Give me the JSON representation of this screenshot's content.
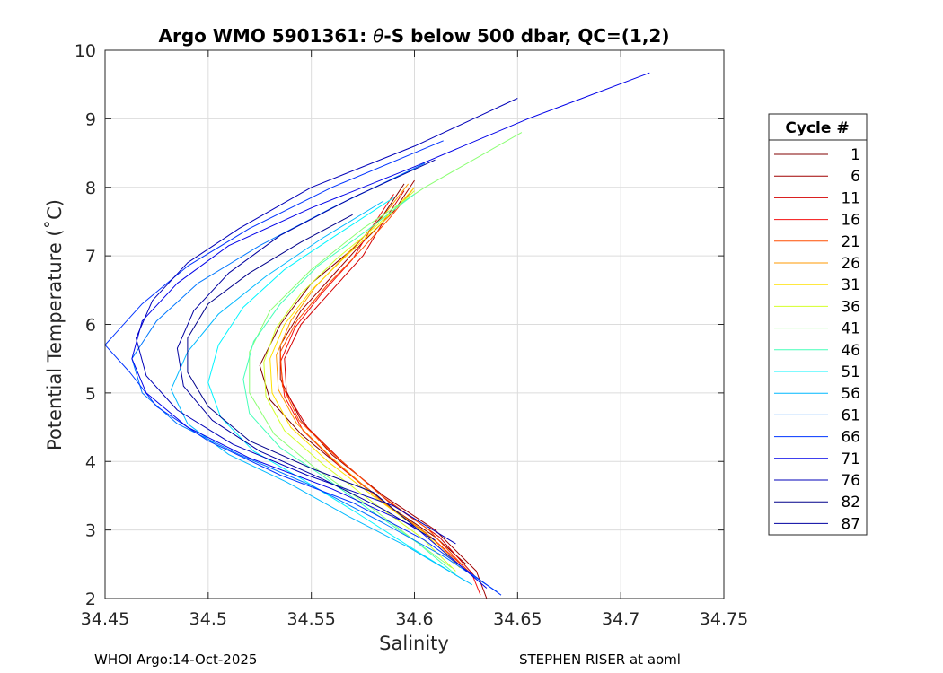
{
  "chart_data": {
    "type": "line",
    "title": "Argo WMO 5901361: θ-S below 500 dbar,  QC=(1,2)",
    "title_prefix": "Argo WMO 5901361: ",
    "title_theta": "θ",
    "title_suffix": "-S below 500 dbar,  QC=(1,2)",
    "xlabel": "Salinity",
    "ylabel": "Potential Temperature (˚C)",
    "xlim": [
      34.45,
      34.75
    ],
    "ylim": [
      2,
      10
    ],
    "xticks": [
      34.45,
      34.5,
      34.55,
      34.6,
      34.65,
      34.7,
      34.75
    ],
    "xtick_labels": [
      "34.45",
      "34.5",
      "34.55",
      "34.6",
      "34.65",
      "34.7",
      "34.75"
    ],
    "yticks": [
      2,
      3,
      4,
      5,
      6,
      7,
      8,
      9,
      10
    ],
    "ytick_labels": [
      "2",
      "3",
      "4",
      "5",
      "6",
      "7",
      "8",
      "9",
      "10"
    ],
    "grid": true,
    "legend": {
      "title": "Cycle #",
      "placement": "right",
      "entries": [
        {
          "label": "1",
          "color": "#800000"
        },
        {
          "label": "6",
          "color": "#a00000"
        },
        {
          "label": "11",
          "color": "#d40000"
        },
        {
          "label": "16",
          "color": "#f51010"
        },
        {
          "label": "21",
          "color": "#ff4f00"
        },
        {
          "label": "26",
          "color": "#ff9a00"
        },
        {
          "label": "31",
          "color": "#ffe100"
        },
        {
          "label": "36",
          "color": "#d4ff2a"
        },
        {
          "label": "41",
          "color": "#8bff73"
        },
        {
          "label": "46",
          "color": "#45ffb9"
        },
        {
          "label": "51",
          "color": "#00f5ff"
        },
        {
          "label": "56",
          "color": "#00b8ff"
        },
        {
          "label": "61",
          "color": "#0078ff"
        },
        {
          "label": "66",
          "color": "#0034ff"
        },
        {
          "label": "71",
          "color": "#0000e8"
        },
        {
          "label": "76",
          "color": "#0000b8"
        },
        {
          "label": "82",
          "color": "#00008a"
        },
        {
          "label": "87",
          "color": "#0000a0"
        }
      ]
    },
    "series": [
      {
        "name": "1",
        "color": "#800000",
        "points": [
          [
            34.595,
            8.05
          ],
          [
            34.585,
            7.6
          ],
          [
            34.57,
            7.1
          ],
          [
            34.55,
            6.6
          ],
          [
            34.535,
            6.0
          ],
          [
            34.525,
            5.4
          ],
          [
            34.53,
            4.9
          ],
          [
            34.545,
            4.4
          ],
          [
            34.565,
            3.9
          ],
          [
            34.59,
            3.3
          ],
          [
            34.61,
            2.9
          ],
          [
            34.625,
            2.5
          ]
        ]
      },
      {
        "name": "6",
        "color": "#a00000",
        "points": [
          [
            34.6,
            8.1
          ],
          [
            34.59,
            7.65
          ],
          [
            34.575,
            7.2
          ],
          [
            34.56,
            6.7
          ],
          [
            34.545,
            6.2
          ],
          [
            34.535,
            5.7
          ],
          [
            34.535,
            5.2
          ],
          [
            34.545,
            4.6
          ],
          [
            34.56,
            4.1
          ],
          [
            34.585,
            3.5
          ],
          [
            34.61,
            3.0
          ],
          [
            34.63,
            2.4
          ],
          [
            34.635,
            2.0
          ]
        ]
      },
      {
        "name": "11",
        "color": "#d40000",
        "points": [
          [
            34.595,
            7.95
          ],
          [
            34.585,
            7.5
          ],
          [
            34.575,
            7.0
          ],
          [
            34.56,
            6.5
          ],
          [
            34.545,
            6.0
          ],
          [
            34.537,
            5.5
          ],
          [
            34.538,
            5.0
          ],
          [
            34.548,
            4.5
          ],
          [
            34.565,
            4.0
          ],
          [
            34.588,
            3.4
          ],
          [
            34.612,
            2.9
          ],
          [
            34.63,
            2.3
          ]
        ]
      },
      {
        "name": "16",
        "color": "#f51010",
        "points": [
          [
            34.59,
            7.9
          ],
          [
            34.58,
            7.45
          ],
          [
            34.57,
            6.95
          ],
          [
            34.555,
            6.45
          ],
          [
            34.542,
            5.95
          ],
          [
            34.535,
            5.45
          ],
          [
            34.537,
            4.95
          ],
          [
            34.546,
            4.45
          ],
          [
            34.563,
            3.95
          ],
          [
            34.585,
            3.4
          ],
          [
            34.608,
            2.9
          ],
          [
            34.628,
            2.35
          ],
          [
            34.632,
            2.05
          ]
        ]
      },
      {
        "name": "21",
        "color": "#ff4f00",
        "points": [
          [
            34.6,
            8.0
          ],
          [
            34.588,
            7.55
          ],
          [
            34.573,
            7.05
          ],
          [
            34.557,
            6.55
          ],
          [
            34.543,
            6.05
          ],
          [
            34.535,
            5.6
          ],
          [
            34.536,
            5.1
          ],
          [
            34.544,
            4.6
          ],
          [
            34.561,
            4.1
          ],
          [
            34.584,
            3.5
          ],
          [
            34.607,
            3.0
          ],
          [
            34.626,
            2.4
          ]
        ]
      },
      {
        "name": "26",
        "color": "#ff9a00",
        "points": [
          [
            34.597,
            8.05
          ],
          [
            34.584,
            7.55
          ],
          [
            34.568,
            7.05
          ],
          [
            34.552,
            6.55
          ],
          [
            34.54,
            6.05
          ],
          [
            34.533,
            5.55
          ],
          [
            34.534,
            5.05
          ],
          [
            34.543,
            4.55
          ],
          [
            34.56,
            4.05
          ],
          [
            34.583,
            3.45
          ],
          [
            34.606,
            2.95
          ],
          [
            34.625,
            2.4
          ]
        ]
      },
      {
        "name": "31",
        "color": "#ffe100",
        "points": [
          [
            34.6,
            8.0
          ],
          [
            34.585,
            7.5
          ],
          [
            34.567,
            7.0
          ],
          [
            34.55,
            6.5
          ],
          [
            34.537,
            6.0
          ],
          [
            34.53,
            5.5
          ],
          [
            34.531,
            5.0
          ],
          [
            34.54,
            4.5
          ],
          [
            34.558,
            4.0
          ],
          [
            34.582,
            3.45
          ],
          [
            34.605,
            2.95
          ],
          [
            34.622,
            2.45
          ]
        ]
      },
      {
        "name": "36",
        "color": "#d4ff2a",
        "points": [
          [
            34.6,
            7.95
          ],
          [
            34.582,
            7.45
          ],
          [
            34.562,
            6.95
          ],
          [
            34.545,
            6.45
          ],
          [
            34.533,
            5.95
          ],
          [
            34.527,
            5.45
          ],
          [
            34.528,
            4.95
          ],
          [
            34.537,
            4.45
          ],
          [
            34.556,
            3.95
          ],
          [
            34.58,
            3.4
          ],
          [
            34.603,
            2.9
          ],
          [
            34.62,
            2.4
          ]
        ]
      },
      {
        "name": "41",
        "color": "#8bff73",
        "points": [
          [
            34.652,
            8.8
          ],
          [
            34.605,
            8.0
          ],
          [
            34.575,
            7.4
          ],
          [
            34.55,
            6.8
          ],
          [
            34.53,
            6.2
          ],
          [
            34.52,
            5.6
          ],
          [
            34.52,
            5.0
          ],
          [
            34.532,
            4.4
          ],
          [
            34.552,
            3.9
          ],
          [
            34.578,
            3.35
          ],
          [
            34.6,
            2.85
          ],
          [
            34.618,
            2.45
          ]
        ]
      },
      {
        "name": "46",
        "color": "#45ffb9",
        "points": [
          [
            34.6,
            7.9
          ],
          [
            34.576,
            7.35
          ],
          [
            34.553,
            6.85
          ],
          [
            34.535,
            6.3
          ],
          [
            34.522,
            5.75
          ],
          [
            34.517,
            5.2
          ],
          [
            34.52,
            4.7
          ],
          [
            34.535,
            4.2
          ],
          [
            34.555,
            3.8
          ],
          [
            34.578,
            3.3
          ],
          [
            34.602,
            2.8
          ],
          [
            34.62,
            2.35
          ]
        ]
      },
      {
        "name": "51",
        "color": "#00f5ff",
        "points": [
          [
            34.59,
            7.85
          ],
          [
            34.562,
            7.3
          ],
          [
            34.537,
            6.8
          ],
          [
            34.517,
            6.25
          ],
          [
            34.505,
            5.7
          ],
          [
            34.5,
            5.15
          ],
          [
            34.506,
            4.65
          ],
          [
            34.522,
            4.15
          ],
          [
            34.545,
            3.75
          ],
          [
            34.572,
            3.25
          ],
          [
            34.598,
            2.75
          ],
          [
            34.625,
            2.25
          ]
        ]
      },
      {
        "name": "56",
        "color": "#00b8ff",
        "points": [
          [
            34.585,
            7.8
          ],
          [
            34.555,
            7.25
          ],
          [
            34.528,
            6.7
          ],
          [
            34.505,
            6.15
          ],
          [
            34.49,
            5.6
          ],
          [
            34.482,
            5.05
          ],
          [
            34.49,
            4.55
          ],
          [
            34.51,
            4.1
          ],
          [
            34.538,
            3.7
          ],
          [
            34.568,
            3.2
          ],
          [
            34.597,
            2.75
          ],
          [
            34.628,
            2.2
          ]
        ]
      },
      {
        "name": "61",
        "color": "#0078ff",
        "points": [
          [
            34.605,
            8.35
          ],
          [
            34.56,
            7.7
          ],
          [
            34.525,
            7.15
          ],
          [
            34.495,
            6.6
          ],
          [
            34.475,
            6.05
          ],
          [
            34.463,
            5.5
          ],
          [
            34.468,
            5.0
          ],
          [
            34.485,
            4.55
          ],
          [
            34.515,
            4.1
          ],
          [
            34.55,
            3.65
          ],
          [
            34.585,
            3.1
          ],
          [
            34.615,
            2.6
          ],
          [
            34.64,
            2.1
          ]
        ]
      },
      {
        "name": "66",
        "color": "#0034ff",
        "points": [
          [
            34.614,
            8.68
          ],
          [
            34.56,
            8.0
          ],
          [
            34.52,
            7.4
          ],
          [
            34.49,
            6.85
          ],
          [
            34.468,
            6.3
          ],
          [
            34.45,
            5.7
          ],
          [
            34.462,
            5.3
          ],
          [
            34.475,
            4.8
          ],
          [
            34.5,
            4.3
          ],
          [
            34.535,
            3.8
          ],
          [
            34.57,
            3.4
          ],
          [
            34.605,
            2.85
          ],
          [
            34.642,
            2.05
          ]
        ]
      },
      {
        "name": "71",
        "color": "#0000e8",
        "points": [
          [
            34.714,
            9.67
          ],
          [
            34.655,
            9.0
          ],
          [
            34.6,
            8.3
          ],
          [
            34.55,
            7.7
          ],
          [
            34.51,
            7.15
          ],
          [
            34.485,
            6.6
          ],
          [
            34.468,
            6.05
          ],
          [
            34.463,
            5.5
          ],
          [
            34.47,
            5.0
          ],
          [
            34.49,
            4.5
          ],
          [
            34.52,
            4.05
          ],
          [
            34.56,
            3.6
          ],
          [
            34.6,
            3.05
          ],
          [
            34.635,
            2.15
          ]
        ]
      },
      {
        "name": "76",
        "color": "#0000b8",
        "points": [
          [
            34.65,
            9.3
          ],
          [
            34.6,
            8.6
          ],
          [
            34.55,
            8.0
          ],
          [
            34.515,
            7.4
          ],
          [
            34.49,
            6.9
          ],
          [
            34.473,
            6.35
          ],
          [
            34.465,
            5.8
          ],
          [
            34.47,
            5.25
          ],
          [
            34.485,
            4.75
          ],
          [
            34.512,
            4.25
          ],
          [
            34.548,
            3.8
          ],
          [
            34.59,
            3.35
          ],
          [
            34.62,
            2.8
          ]
        ]
      },
      {
        "name": "82",
        "color": "#00008a",
        "points": [
          [
            34.57,
            7.6
          ],
          [
            34.545,
            7.2
          ],
          [
            34.52,
            6.75
          ],
          [
            34.5,
            6.3
          ],
          [
            34.49,
            5.8
          ],
          [
            34.49,
            5.3
          ],
          [
            34.5,
            4.8
          ],
          [
            34.52,
            4.3
          ],
          [
            34.55,
            3.9
          ],
          [
            34.58,
            3.55
          ],
          [
            34.6,
            3.05
          ]
        ]
      },
      {
        "name": "87",
        "color": "#0000a0",
        "points": [
          [
            34.61,
            8.4
          ],
          [
            34.57,
            7.85
          ],
          [
            34.535,
            7.3
          ],
          [
            34.51,
            6.75
          ],
          [
            34.493,
            6.2
          ],
          [
            34.485,
            5.65
          ],
          [
            34.488,
            5.1
          ],
          [
            34.502,
            4.6
          ],
          [
            34.525,
            4.15
          ],
          [
            34.555,
            3.75
          ],
          [
            34.585,
            3.3
          ],
          [
            34.61,
            2.85
          ]
        ]
      }
    ]
  },
  "footer": {
    "left": "WHOI Argo:14-Oct-2025",
    "right": "STEPHEN RISER at aoml"
  }
}
